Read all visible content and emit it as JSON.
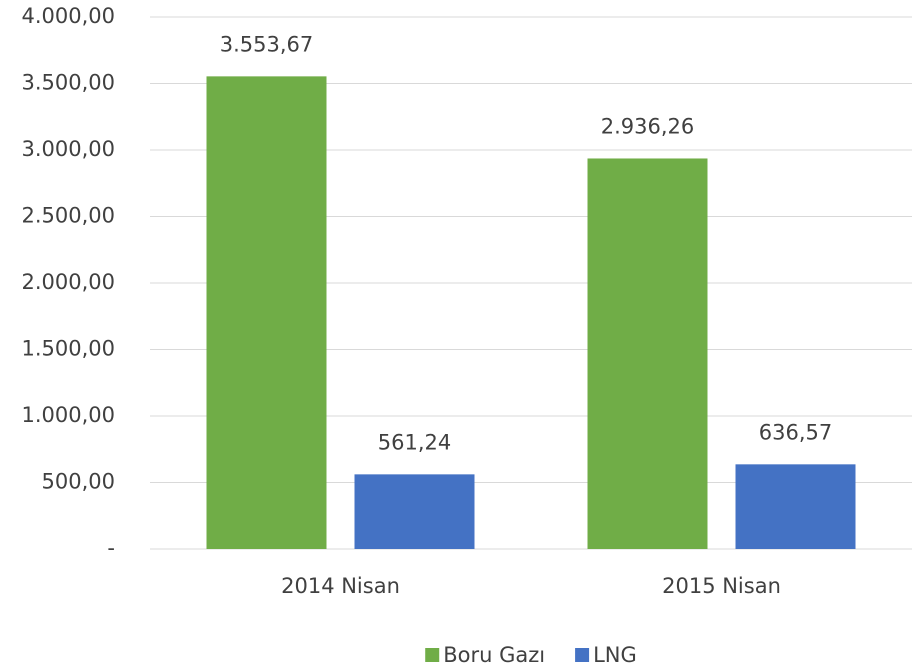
{
  "chart_data": {
    "type": "bar",
    "categories": [
      "2014 Nisan",
      "2015 Nisan"
    ],
    "series": [
      {
        "name": "Boru Gazı",
        "color": "#70ad47",
        "values": [
          3553.67,
          2936.26
        ],
        "value_labels": [
          "3.553,67",
          "2.936,26"
        ]
      },
      {
        "name": "LNG",
        "color": "#4472c4",
        "values": [
          561.24,
          636.57
        ],
        "value_labels": [
          "561,24",
          "636,57"
        ]
      }
    ],
    "ylim": [
      0,
      4000
    ],
    "yticks": [
      {
        "value": 0,
        "label": "-"
      },
      {
        "value": 500,
        "label": "500,00"
      },
      {
        "value": 1000,
        "label": "1.000,00"
      },
      {
        "value": 1500,
        "label": "1.500,00"
      },
      {
        "value": 2000,
        "label": "2.000,00"
      },
      {
        "value": 2500,
        "label": "2.500,00"
      },
      {
        "value": 3000,
        "label": "3.000,00"
      },
      {
        "value": 3500,
        "label": "3.500,00"
      },
      {
        "value": 4000,
        "label": "4.000,00"
      }
    ],
    "grid": true,
    "legend": "bottom"
  }
}
